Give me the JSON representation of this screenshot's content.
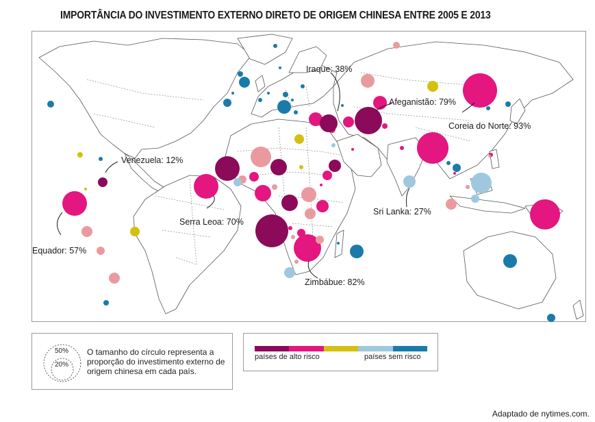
{
  "title": "IMPORTÂNCIA DO INVESTIMENTO EXTERNO DIRETO DE ORIGEM CHINESA ENTRE 2005 E 2013",
  "credit": "Adaptado de nytimes.com.",
  "callouts": {
    "venezuela": "Venezuela: 12%",
    "equador": "Equador: 57%",
    "serra_leoa": "Serra Leoa: 70%",
    "iraque": "Iraque: 38%",
    "afeganistao": "Afeganistão: 79%",
    "coreia": "Coreia do Norte: 93%",
    "sri_lanka": "Sri Lanka: 27%",
    "zimbabue": "Zimbábue: 82%"
  },
  "size_legend": {
    "outer": "50%",
    "inner": "20%",
    "text": "O tamanho do círculo representa a proporção do investimento externo de origem chinesa em cada país."
  },
  "risk_legend": {
    "high": "países de alto risco",
    "none": "países sem risco",
    "colors": [
      "#8b0a5a",
      "#e4167f",
      "#d4c010",
      "#9fc8df",
      "#1a7bab"
    ]
  },
  "colors": {
    "c1": "#8b0a5a",
    "c2": "#e4167f",
    "c3": "#ea9a9f",
    "c4": "#d4c010",
    "c5": "#9fc8df",
    "c6": "#1a7bab"
  },
  "points": [
    {
      "name": "ecuador",
      "pct": 57,
      "c": "c2"
    },
    {
      "name": "venezuela",
      "pct": 12,
      "c": "c1"
    },
    {
      "name": "sierra-leone",
      "pct": 70,
      "c": "c2"
    },
    {
      "name": "iraq",
      "pct": 38,
      "c": "c1"
    },
    {
      "name": "afghanistan",
      "pct": 79,
      "c": "c1"
    },
    {
      "name": "north-korea",
      "pct": 93,
      "c": "c2"
    },
    {
      "name": "sri-lanka",
      "pct": 27,
      "c": "c5"
    },
    {
      "name": "zimbabwe",
      "pct": 82,
      "c": "c2"
    }
  ]
}
